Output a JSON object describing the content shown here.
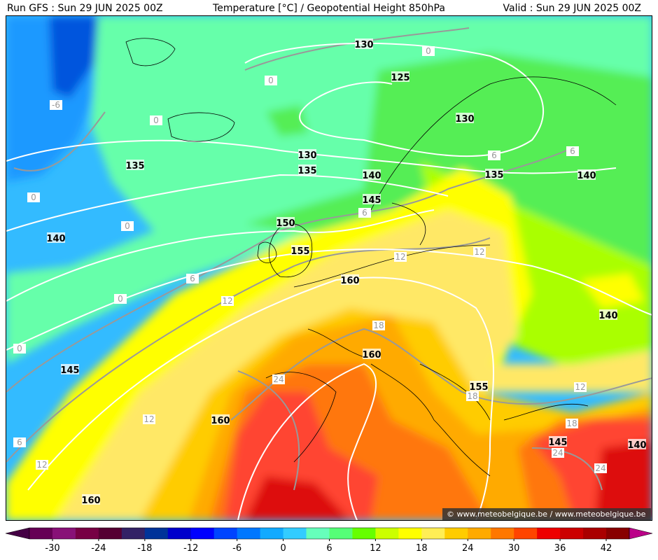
{
  "header": {
    "run": "Run GFS : Sun 29 JUN 2025 00Z",
    "title": "Temperature [°C] / Geopotential Height 850hPa",
    "valid": "Valid : Sun 29 JUN 2025 00Z"
  },
  "height_labels": [
    "130",
    "125",
    "130",
    "135",
    "130",
    "135",
    "140",
    "135",
    "140",
    "145",
    "140",
    "150",
    "155",
    "160",
    "140",
    "145",
    "160",
    "155",
    "160",
    "145",
    "140",
    "160"
  ],
  "temperature_labels": [
    "0",
    "0",
    "0",
    "0",
    "0",
    "0",
    "0",
    "-6",
    "6",
    "6",
    "6",
    "6",
    "6",
    "12",
    "12",
    "12",
    "12",
    "12",
    "12",
    "18",
    "18",
    "18",
    "24",
    "24",
    "24"
  ],
  "watermark": "© www.meteobelgique.be / www.meteobelgique.be",
  "colorbar": {
    "ticks": [
      -30,
      -24,
      -18,
      -12,
      -6,
      0,
      6,
      12,
      18,
      24,
      30,
      36,
      42
    ],
    "colors": [
      "#660055",
      "#881177",
      "#770044",
      "#550033",
      "#332266",
      "#003399",
      "#0000cc",
      "#0000ff",
      "#0044ff",
      "#0077ff",
      "#11aaff",
      "#33ccff",
      "#66ffbb",
      "#55ff77",
      "#66ff00",
      "#ccff00",
      "#ffff00",
      "#ffee55",
      "#ffcc00",
      "#ffaa00",
      "#ff7700",
      "#ff4400",
      "#ee0000",
      "#cc0000",
      "#aa0000",
      "#880000",
      "#bb0088"
    ]
  }
}
